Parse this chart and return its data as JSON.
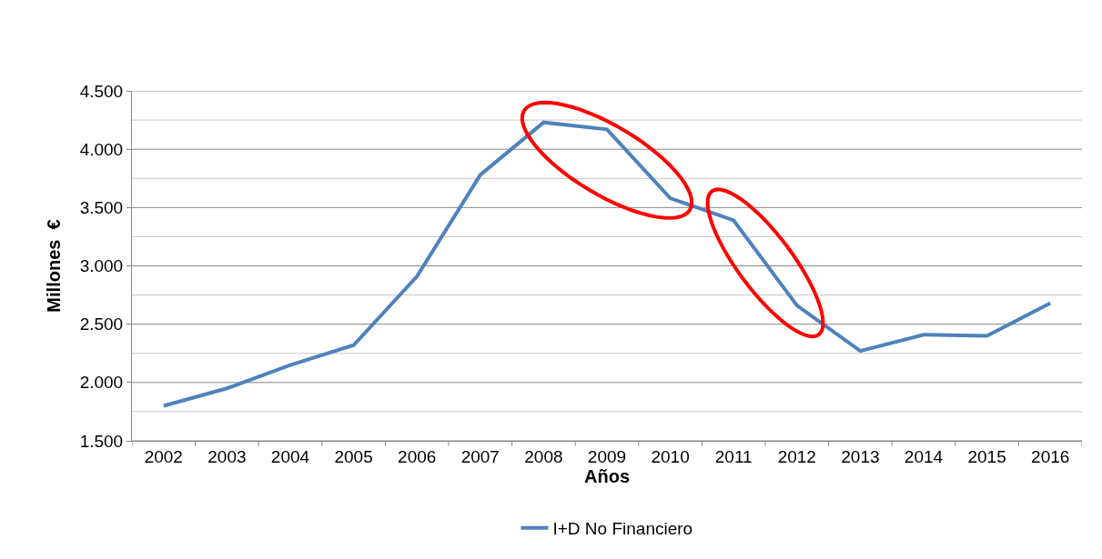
{
  "chart_data": {
    "type": "line",
    "xlabel": "Años",
    "ylabel": "Millones  €",
    "categories": [
      "2002",
      "2003",
      "2004",
      "2005",
      "2006",
      "2007",
      "2008",
      "2009",
      "2010",
      "2011",
      "2012",
      "2013",
      "2014",
      "2015",
      "2016"
    ],
    "series": [
      {
        "name": "I+D No Financiero",
        "color": "#4f81bd",
        "values": [
          1800,
          1950,
          2150,
          2320,
          2910,
          3780,
          4230,
          4170,
          3580,
          3390,
          2660,
          2270,
          2410,
          2400,
          2680
        ]
      }
    ],
    "ylim": [
      1500,
      4500
    ],
    "yticks": [
      {
        "value": 1500,
        "label": "1.500"
      },
      {
        "value": 1750,
        "label": null
      },
      {
        "value": 2000,
        "label": "2.000"
      },
      {
        "value": 2250,
        "label": null
      },
      {
        "value": 2500,
        "label": "2.500"
      },
      {
        "value": 2750,
        "label": null
      },
      {
        "value": 3000,
        "label": "3.000"
      },
      {
        "value": 3250,
        "label": null
      },
      {
        "value": 3500,
        "label": "3.500"
      },
      {
        "value": 3750,
        "label": null
      },
      {
        "value": 4000,
        "label": "4.000"
      },
      {
        "value": 4250,
        "label": null
      },
      {
        "value": 4500,
        "label": "4.500"
      }
    ],
    "grid": "y",
    "legend": "bottom",
    "marker": "none",
    "line_style": "solid"
  }
}
